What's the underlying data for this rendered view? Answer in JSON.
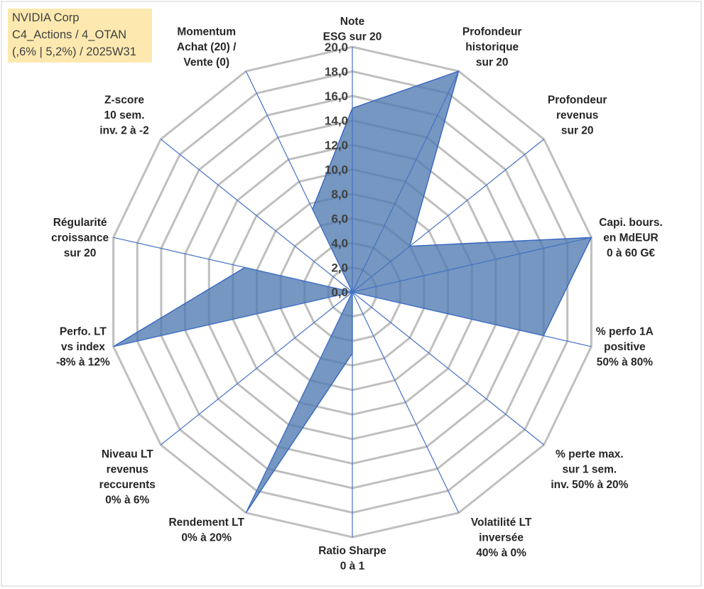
{
  "chart_data": {
    "type": "radar",
    "title_lines": [
      "NVIDIA Corp",
      "C4_Actions / 4_OTAN",
      "(,6% | 5,2%) / 2025W31"
    ],
    "radial_axis": {
      "min": 0,
      "max": 20,
      "step": 2,
      "tick_labels": [
        "0,0",
        "2,0",
        "4,0",
        "6,0",
        "8,0",
        "10,0",
        "12,0",
        "14,0",
        "16,0",
        "18,0",
        "20,0"
      ]
    },
    "grid": true,
    "axes": [
      {
        "label_lines": [
          "Note",
          "ESG sur 20"
        ],
        "value": 15.0
      },
      {
        "label_lines": [
          "Profondeur",
          "historique",
          "sur 20"
        ],
        "value": 20.0
      },
      {
        "label_lines": [
          "Profondeur",
          "revenus",
          "sur 20"
        ],
        "value": 6.0
      },
      {
        "label_lines": [
          "Capi. bours.",
          "en MdEUR",
          "0 à 60 G€"
        ],
        "value": 20.0
      },
      {
        "label_lines": [
          "% perfo 1A",
          "positive",
          "50% à 80%"
        ],
        "value": 16.0
      },
      {
        "label_lines": [
          "% perte max.",
          "sur 1 sem.",
          "inv. 50% à 20%"
        ],
        "value": 0.0
      },
      {
        "label_lines": [
          "Volatilité LT",
          "inversée",
          "40% à 0%"
        ],
        "value": 0.0
      },
      {
        "label_lines": [
          "Ratio Sharpe",
          "0 à 1"
        ],
        "value": 5.0
      },
      {
        "label_lines": [
          "Rendement LT",
          "0% à 20%"
        ],
        "value": 20.0
      },
      {
        "label_lines": [
          "Niveau LT",
          "revenus",
          "reccurents",
          "0% à 6%"
        ],
        "value": 0.0
      },
      {
        "label_lines": [
          "Perfo. LT",
          "vs index",
          "-8% à 12%"
        ],
        "value": 20.0
      },
      {
        "label_lines": [
          "Régularité",
          "croissance",
          "sur 20"
        ],
        "value": 9.0
      },
      {
        "label_lines": [
          "Z-score",
          "10 sem.",
          "inv. 2 à -2"
        ],
        "value": 0.0
      },
      {
        "label_lines": [
          "Momentum",
          "Achat (20) /",
          "Vente (0)"
        ],
        "value": 7.5
      }
    ],
    "series": [
      {
        "values": [
          15.0,
          20.0,
          6.0,
          20.0,
          16.0,
          0.0,
          0.0,
          5.0,
          20.0,
          0.0,
          20.0,
          9.0,
          0.0,
          7.5
        ]
      }
    ],
    "colors": {
      "area": "#4e7aaf",
      "spoke": "#4472c4",
      "grid": "#bfbfbf",
      "title_bg": "#fde9b0"
    }
  }
}
